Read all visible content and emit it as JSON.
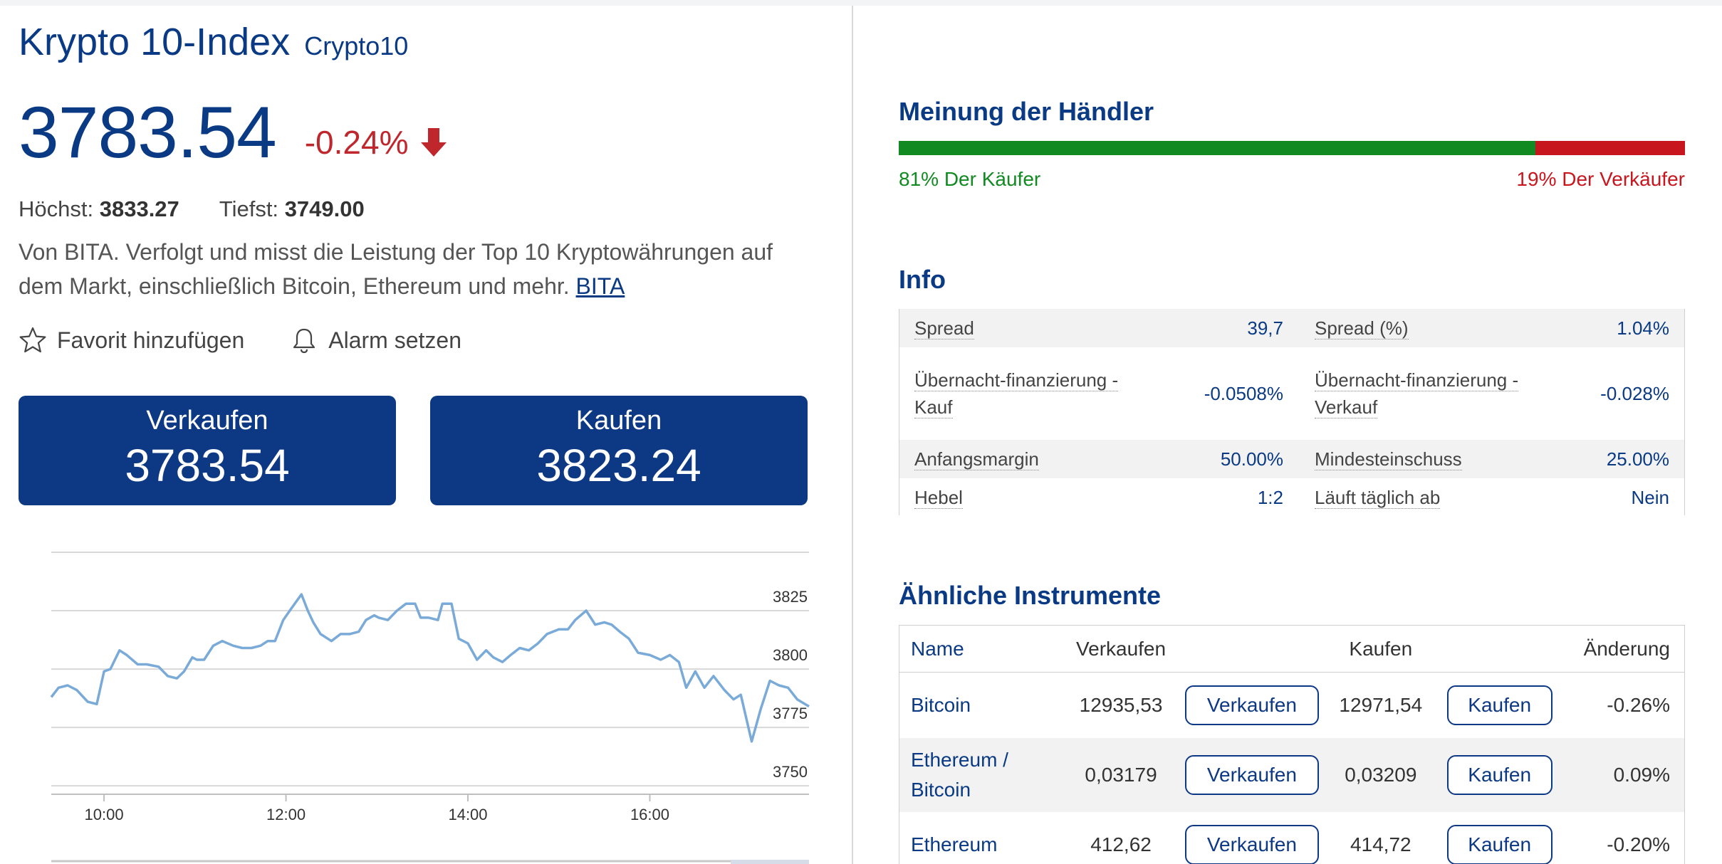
{
  "instrument": {
    "title": "Krypto 10-Index",
    "ticker": "Crypto10",
    "price": "3783.54",
    "change": "-0.24%",
    "high_label": "Höchst:",
    "high_value": "3833.27",
    "low_label": "Tiefst:",
    "low_value": "3749.00",
    "description": "Von BITA. Verfolgt und misst die Leistung der Top 10 Kryptowährungen auf dem Markt, einschließlich Bitcoin, Ethereum und mehr.",
    "description_link": "BITA"
  },
  "actions": {
    "favorite": "Favorit hinzufügen",
    "alarm": "Alarm setzen"
  },
  "trade": {
    "sell_label": "Verkaufen",
    "sell_price": "3783.54",
    "buy_label": "Kaufen",
    "buy_price": "3823.24"
  },
  "sentiment": {
    "title": "Meinung der Händler",
    "buy_pct": 81,
    "buy_label": "81% Der Käufer",
    "sell_label": "19% Der Verkäufer",
    "buy_color": "#118a21",
    "sell_color": "#c8161e"
  },
  "info": {
    "title": "Info",
    "rows": [
      {
        "k1": "Spread",
        "v1": "39,7",
        "k2": "Spread (%)",
        "v2": "1.04%"
      },
      {
        "k1": "Übernacht-finanzierung - Kauf",
        "v1": "-0.0508%",
        "k2": "Übernacht-finanzierung - Verkauf",
        "v2": "-0.028%"
      },
      {
        "k1": "Anfangsmargin",
        "v1": "50.00%",
        "k2": "Mindesteinschuss",
        "v2": "25.00%"
      },
      {
        "k1": "Hebel",
        "v1": "1:2",
        "k2": "Läuft täglich ab",
        "v2": "Nein"
      }
    ]
  },
  "similar": {
    "title": "Ähnliche Instrumente",
    "headers": {
      "name": "Name",
      "sell": "Verkaufen",
      "buy": "Kaufen",
      "change": "Änderung"
    },
    "sell_button": "Verkaufen",
    "buy_button": "Kaufen",
    "rows": [
      {
        "name": "Bitcoin",
        "sell": "12935,53",
        "buy": "12971,54",
        "change": "-0.26%",
        "dir": "neg"
      },
      {
        "name": "Ethereum / Bitcoin",
        "sell": "0,03179",
        "buy": "0,03209",
        "change": "0.09%",
        "dir": "pos"
      },
      {
        "name": "Ethereum",
        "sell": "412,62",
        "buy": "414,72",
        "change": "-0.20%",
        "dir": "neg"
      }
    ]
  },
  "chart_data": {
    "type": "line",
    "xlabel": "",
    "ylabel": "",
    "x_ticks": [
      {
        "label": "10:00",
        "t": 10.0
      },
      {
        "label": "12:00",
        "t": 12.0
      },
      {
        "label": "14:00",
        "t": 14.0
      },
      {
        "label": "16:00",
        "t": 16.0
      }
    ],
    "y_ticks": [
      3750,
      3775,
      3800,
      3825
    ],
    "xlim": [
      9.42,
      17.75
    ],
    "ylim": [
      3747,
      3850
    ],
    "grid": true,
    "line_color": "#7aaad8",
    "series": [
      {
        "x": [
          9.42,
          9.5,
          9.6,
          9.7,
          9.82,
          9.92,
          10.0,
          10.07,
          10.17,
          10.25,
          10.37,
          10.47,
          10.6,
          10.7,
          10.8,
          10.88,
          10.97,
          11.02,
          11.1,
          11.2,
          11.3,
          11.42,
          11.52,
          11.62,
          11.72,
          11.8,
          11.88,
          11.97,
          12.06,
          12.17,
          12.24,
          12.3,
          12.38,
          12.5,
          12.6,
          12.7,
          12.8,
          12.88,
          12.97,
          13.02,
          13.12,
          13.22,
          13.32,
          13.42,
          13.48,
          13.57,
          13.67,
          13.72,
          13.82,
          13.9,
          14.0,
          14.1,
          14.2,
          14.28,
          14.38,
          14.47,
          14.57,
          14.67,
          14.77,
          14.87,
          15.0,
          15.1,
          15.18,
          15.3,
          15.4,
          15.5,
          15.58,
          15.67,
          15.77,
          15.87,
          16.0,
          16.12,
          16.22,
          16.32,
          16.4,
          16.5,
          16.6,
          16.7,
          16.82,
          16.92,
          17.0,
          17.12,
          17.22,
          17.32,
          17.42,
          17.52,
          17.62,
          17.75
        ],
        "y": [
          3788,
          3792,
          3793,
          3791,
          3786,
          3785,
          3799,
          3800,
          3808,
          3806,
          3802,
          3802,
          3801,
          3797,
          3796,
          3799,
          3805,
          3804,
          3804,
          3810,
          3812,
          3810,
          3809,
          3809,
          3810,
          3812,
          3812,
          3821,
          3826,
          3832,
          3825,
          3820,
          3815,
          3812,
          3815,
          3815,
          3816,
          3821,
          3823,
          3822,
          3821,
          3825,
          3828,
          3828,
          3822,
          3822,
          3821,
          3828,
          3828,
          3813,
          3811,
          3804,
          3808,
          3805,
          3803,
          3806,
          3809,
          3808,
          3811,
          3815,
          3817,
          3817,
          3821,
          3825,
          3819,
          3820,
          3819,
          3816,
          3813,
          3807,
          3806,
          3804,
          3806,
          3803,
          3792,
          3799,
          3792,
          3797,
          3791,
          3787,
          3789,
          3769,
          3783,
          3795,
          3793,
          3792,
          3787,
          3784
        ]
      }
    ]
  }
}
